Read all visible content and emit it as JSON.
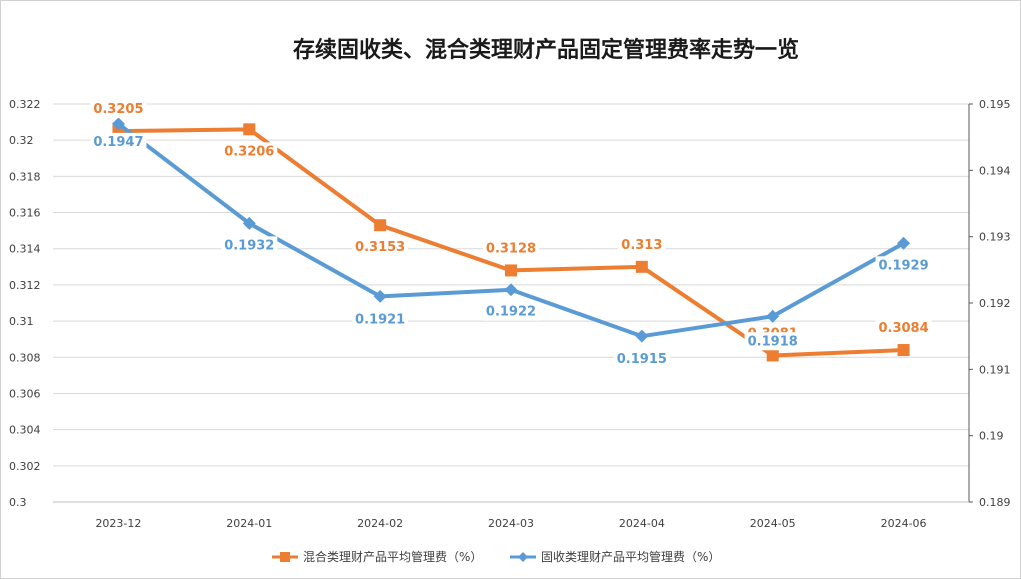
{
  "chart_data": {
    "type": "line",
    "title": "存续固收类、混合类理财产品固定管理费率走势一览",
    "categories": [
      "2023-12",
      "2024-01",
      "2024-02",
      "2024-03",
      "2024-04",
      "2024-05",
      "2024-06"
    ],
    "y_left": {
      "min": 0.3,
      "max": 0.322,
      "step": 0.002,
      "ticks": [
        "0.3",
        "0.302",
        "0.304",
        "0.306",
        "0.308",
        "0.31",
        "0.312",
        "0.314",
        "0.316",
        "0.318",
        "0.32",
        "0.322"
      ]
    },
    "y_right": {
      "min": 0.189,
      "max": 0.195,
      "step": 0.001,
      "ticks": [
        "0.189",
        "0.19",
        "0.191",
        "0.192",
        "0.193",
        "0.194",
        "0.195"
      ]
    },
    "grid": true,
    "legend_position": "bottom",
    "series": [
      {
        "name": "混合类理财产品平均管理费（%）",
        "axis": "left",
        "color": "#ED7D31",
        "marker": "square",
        "values": [
          0.3205,
          0.3206,
          0.3153,
          0.3128,
          0.313,
          0.3081,
          0.3084
        ],
        "labels": [
          "0.3205",
          "0.3206",
          "0.3153",
          "0.3128",
          "0.313",
          "0.3081",
          "0.3084"
        ]
      },
      {
        "name": "固收类理财产品平均管理费（%）",
        "axis": "right",
        "color": "#5B9BD5",
        "marker": "diamond",
        "values": [
          0.1947,
          0.1932,
          0.1921,
          0.1922,
          0.1915,
          0.1918,
          0.1929
        ],
        "labels": [
          "0.1947",
          "0.1932",
          "0.1921",
          "0.1922",
          "0.1915",
          "0.1918",
          "0.1929"
        ]
      }
    ]
  }
}
